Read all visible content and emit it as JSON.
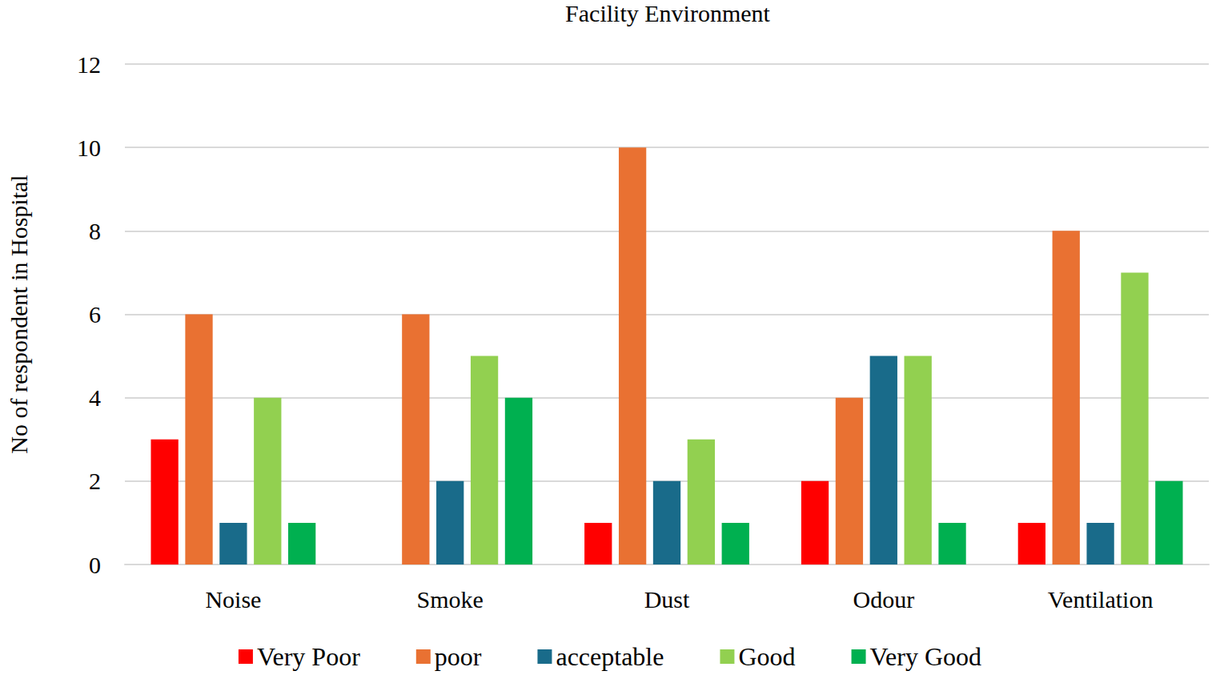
{
  "chart_data": {
    "type": "bar",
    "title": "Facility Environment",
    "y_label": "No of respondent in Hospital",
    "categories": [
      "Noise",
      "Smoke",
      "Dust",
      "Odour",
      "Ventilation"
    ],
    "series": [
      {
        "name": "Very Poor",
        "color": "#ff0000",
        "values": [
          3,
          0,
          1,
          2,
          1
        ]
      },
      {
        "name": "poor",
        "color": "#e97132",
        "values": [
          6,
          6,
          10,
          4,
          8
        ]
      },
      {
        "name": "acceptable",
        "color": "#196b8a",
        "values": [
          1,
          2,
          2,
          5,
          1
        ]
      },
      {
        "name": "Good",
        "color": "#92d050",
        "values": [
          4,
          5,
          3,
          5,
          7
        ]
      },
      {
        "name": "Very Good",
        "color": "#00b050",
        "values": [
          1,
          4,
          1,
          1,
          2
        ]
      }
    ],
    "ylim": [
      0,
      12
    ],
    "yticks": [
      0,
      2,
      4,
      6,
      8,
      10,
      12
    ],
    "grid": true,
    "legend": "bottom"
  }
}
